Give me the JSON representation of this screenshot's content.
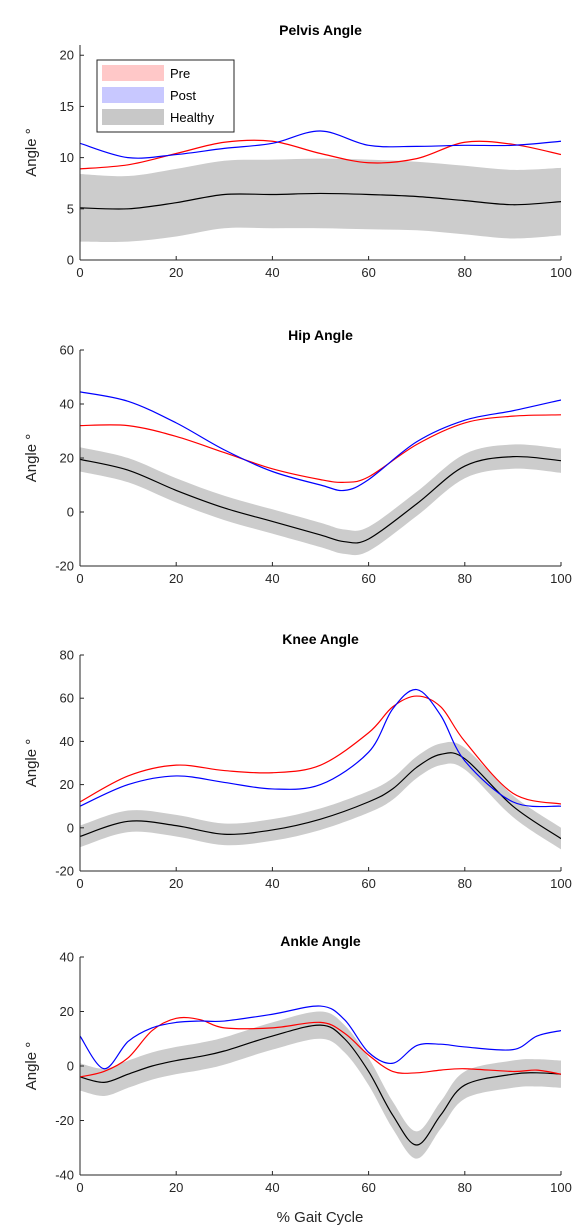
{
  "figure_xlabel": "% Gait Cycle",
  "legend": {
    "placement": "top-left of first panel",
    "entries": [
      {
        "label": "Pre",
        "color": "#ff0000",
        "band_color": "#ffc8c8"
      },
      {
        "label": "Post",
        "color": "#0000ff",
        "band_color": "#c8c8ff"
      },
      {
        "label": "Healthy",
        "color": "#000000",
        "band_color": "#c8c8c8"
      }
    ]
  },
  "colors": {
    "pre": "#ff0000",
    "post": "#0000ff",
    "healthy": "#000000",
    "healthy_band": "#cccccc",
    "axis": "#262626"
  },
  "chart_data": [
    {
      "type": "line",
      "title": "Pelvis Angle",
      "ylabel": "Angle °",
      "xlim": [
        0,
        100
      ],
      "ylim": [
        0,
        21
      ],
      "xticks": [
        0,
        20,
        40,
        60,
        80,
        100
      ],
      "yticks": [
        0,
        5,
        10,
        15,
        20
      ],
      "x": [
        0,
        10,
        20,
        30,
        40,
        50,
        60,
        70,
        80,
        90,
        100
      ],
      "series": [
        {
          "name": "Pre",
          "values": [
            8.9,
            9.3,
            10.4,
            11.5,
            11.6,
            10.4,
            9.5,
            9.9,
            11.5,
            11.3,
            10.3
          ]
        },
        {
          "name": "Post",
          "values": [
            11.4,
            10.0,
            10.3,
            10.9,
            11.4,
            12.6,
            11.2,
            11.1,
            11.2,
            11.2,
            11.6
          ]
        },
        {
          "name": "Healthy",
          "values": [
            5.1,
            5.0,
            5.6,
            6.4,
            6.4,
            6.5,
            6.4,
            6.2,
            5.8,
            5.4,
            5.7
          ],
          "lower": [
            1.8,
            1.8,
            2.3,
            3.1,
            3.1,
            3.1,
            3.0,
            2.9,
            2.5,
            2.1,
            2.4
          ],
          "upper": [
            8.4,
            8.2,
            8.9,
            9.7,
            9.8,
            9.9,
            9.8,
            9.6,
            9.2,
            8.8,
            9.0
          ]
        }
      ]
    },
    {
      "type": "line",
      "title": "Hip Angle",
      "ylabel": "Angle °",
      "xlim": [
        0,
        100
      ],
      "ylim": [
        -20,
        60
      ],
      "xticks": [
        0,
        20,
        40,
        60,
        80,
        100
      ],
      "yticks": [
        -20,
        0,
        20,
        40,
        60
      ],
      "x": [
        0,
        10,
        20,
        30,
        40,
        50,
        55,
        60,
        70,
        80,
        90,
        100
      ],
      "series": [
        {
          "name": "Pre",
          "values": [
            32,
            32,
            28,
            22,
            16,
            12,
            11,
            13,
            25,
            33,
            35.5,
            36
          ]
        },
        {
          "name": "Post",
          "values": [
            44.5,
            41,
            33,
            23,
            15,
            10,
            8,
            12,
            26,
            34,
            37.5,
            41.5
          ]
        },
        {
          "name": "Healthy",
          "values": [
            19.5,
            15.5,
            8,
            1.5,
            -3.5,
            -8.5,
            -11,
            -10,
            3,
            17,
            20.5,
            19
          ],
          "lower": [
            15,
            11,
            3.5,
            -3,
            -8,
            -13,
            -15.5,
            -14.5,
            -1.5,
            12.5,
            16,
            14.5
          ],
          "upper": [
            24,
            20,
            12.5,
            6,
            1,
            -4,
            -6.5,
            -5.5,
            7.5,
            21.5,
            25,
            23.5
          ]
        }
      ]
    },
    {
      "type": "line",
      "title": "Knee Angle",
      "ylabel": "Angle °",
      "xlim": [
        0,
        100
      ],
      "ylim": [
        -20,
        80
      ],
      "xticks": [
        0,
        20,
        40,
        60,
        80,
        100
      ],
      "yticks": [
        -20,
        0,
        20,
        40,
        60,
        80
      ],
      "x": [
        0,
        10,
        20,
        30,
        40,
        50,
        60,
        65,
        70,
        75,
        80,
        90,
        100
      ],
      "series": [
        {
          "name": "Pre",
          "values": [
            12,
            24,
            29,
            26.5,
            25.5,
            29,
            44,
            56,
            61,
            56,
            40,
            16,
            11
          ]
        },
        {
          "name": "Post",
          "values": [
            10,
            20,
            24,
            21,
            18,
            20,
            35,
            55,
            64,
            52,
            31,
            12,
            10
          ]
        },
        {
          "name": "Healthy",
          "values": [
            -4,
            3,
            1,
            -3,
            -1,
            4,
            12,
            18,
            28,
            34,
            32,
            10,
            -5
          ],
          "lower": [
            -9,
            -2,
            -4,
            -8,
            -6,
            -1,
            7,
            13,
            23,
            29,
            27,
            5,
            -10
          ],
          "upper": [
            1,
            8,
            6,
            2,
            4,
            9,
            17,
            23,
            33,
            39,
            37,
            15,
            0
          ]
        }
      ]
    },
    {
      "type": "line",
      "title": "Ankle Angle",
      "ylabel": "Angle °",
      "xlim": [
        0,
        100
      ],
      "ylim": [
        -40,
        40
      ],
      "xticks": [
        0,
        20,
        40,
        60,
        80,
        100
      ],
      "yticks": [
        -40,
        -20,
        0,
        20,
        40
      ],
      "x": [
        0,
        5,
        10,
        15,
        20,
        25,
        30,
        40,
        50,
        55,
        60,
        65,
        70,
        75,
        80,
        90,
        95,
        100
      ],
      "series": [
        {
          "name": "Pre",
          "values": [
            -4,
            -2,
            3,
            13,
            17.5,
            17,
            14,
            14,
            16,
            12,
            4,
            -2,
            -2.5,
            -1.5,
            -1,
            -2,
            -1.5,
            -3
          ]
        },
        {
          "name": "Post",
          "values": [
            11,
            -1,
            9,
            14,
            16,
            16.5,
            16.5,
            19,
            22,
            17,
            5,
            1,
            7.5,
            8,
            7,
            6,
            11,
            13
          ]
        },
        {
          "name": "Healthy",
          "values": [
            -4,
            -6,
            -3,
            0,
            2,
            3.5,
            5.5,
            11,
            15,
            10,
            -2,
            -18,
            -29,
            -18,
            -7,
            -3,
            -2.5,
            -3
          ],
          "lower": [
            -9,
            -11,
            -8,
            -5,
            -3,
            -1.5,
            0.5,
            6,
            10,
            5,
            -7,
            -23,
            -34,
            -23,
            -12,
            -8,
            -7.5,
            -8
          ],
          "upper": [
            1,
            -1,
            2,
            5,
            7,
            8.5,
            10.5,
            16,
            20,
            15,
            3,
            -13,
            -24,
            -13,
            -2,
            2,
            2.5,
            2
          ]
        }
      ]
    }
  ]
}
